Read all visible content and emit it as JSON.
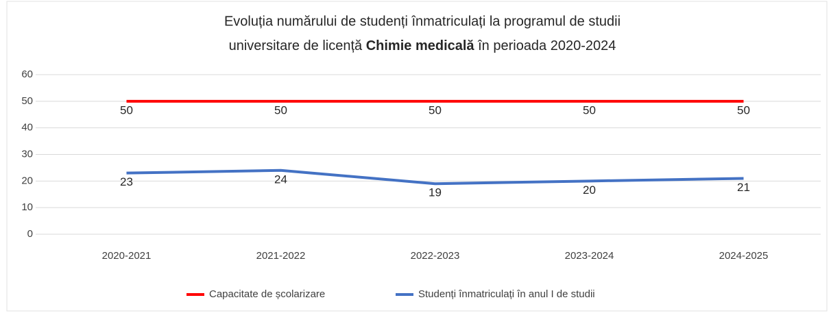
{
  "chart_data": {
    "type": "line",
    "title": {
      "line1": "Evoluția numărului de studenți înmatriculați la programul de studii",
      "line2_start": "universitare de licență ",
      "line2_bold": "Chimie medicală",
      "line2_end": " în perioada 2020-2024"
    },
    "categories": [
      "2020-2021",
      "2021-2022",
      "2022-2023",
      "2023-2024",
      "2024-2025"
    ],
    "series": [
      {
        "name": "Capacitate de școlarizare",
        "color": "#ff0000",
        "values": [
          50,
          50,
          50,
          50,
          50
        ]
      },
      {
        "name": "Studenți înmatriculați în anul I de studii",
        "color": "#4472c4",
        "values": [
          23,
          24,
          19,
          20,
          21
        ]
      }
    ],
    "ylim": [
      0,
      60
    ],
    "yticks": [
      0,
      10,
      20,
      30,
      40,
      50,
      60
    ],
    "grid": true,
    "legend": "bottom"
  }
}
